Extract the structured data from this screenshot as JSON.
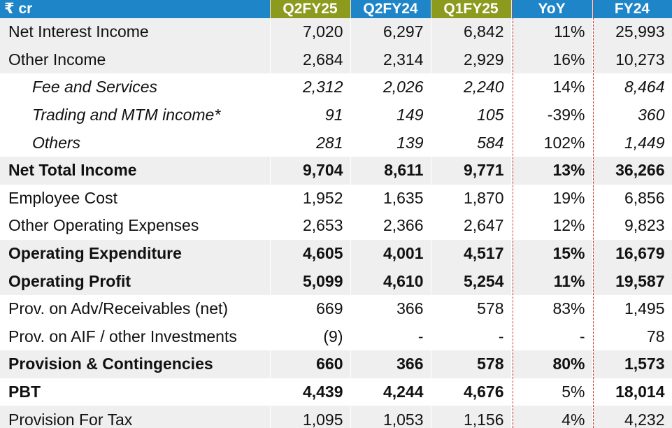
{
  "table": {
    "header": {
      "label": "₹ cr",
      "columns": [
        "Q2FY25",
        "Q2FY24",
        "Q1FY25",
        "YoY",
        "FY24"
      ]
    },
    "rows": [
      {
        "label": "Net Interest Income",
        "values": [
          "7,020",
          "6,297",
          "6,842",
          "11%",
          "25,993"
        ]
      },
      {
        "label": "Other Income",
        "values": [
          "2,684",
          "2,314",
          "2,929",
          "16%",
          "10,273"
        ]
      },
      {
        "label": "Fee and Services",
        "values": [
          "2,312",
          "2,026",
          "2,240",
          "14%",
          "8,464"
        ]
      },
      {
        "label": "Trading and MTM income*",
        "values": [
          "91",
          "149",
          "105",
          "-39%",
          "360"
        ]
      },
      {
        "label": "Others",
        "values": [
          "281",
          "139",
          "584",
          "102%",
          "1,449"
        ]
      },
      {
        "label": "Net Total Income",
        "values": [
          "9,704",
          "8,611",
          "9,771",
          "13%",
          "36,266"
        ]
      },
      {
        "label": "Employee Cost",
        "values": [
          "1,952",
          "1,635",
          "1,870",
          "19%",
          "6,856"
        ]
      },
      {
        "label": "Other Operating Expenses",
        "values": [
          "2,653",
          "2,366",
          "2,647",
          "12%",
          "9,823"
        ]
      },
      {
        "label": "Operating Expenditure",
        "values": [
          "4,605",
          "4,001",
          "4,517",
          "15%",
          "16,679"
        ]
      },
      {
        "label": "Operating Profit",
        "values": [
          "5,099",
          "4,610",
          "5,254",
          "11%",
          "19,587"
        ]
      },
      {
        "label": "Prov. on Adv/Receivables (net)",
        "values": [
          "669",
          "366",
          "578",
          "83%",
          "1,495"
        ]
      },
      {
        "label": "Prov. on AIF / other Investments",
        "values": [
          "(9)",
          "-",
          "-",
          "-",
          "78"
        ]
      },
      {
        "label": "Provision & Contingencies",
        "values": [
          "660",
          "366",
          "578",
          "80%",
          "1,573"
        ]
      },
      {
        "label": "PBT",
        "values": [
          "4,439",
          "4,244",
          "4,676",
          "5%",
          "18,014"
        ]
      },
      {
        "label": "Provision For Tax",
        "values": [
          "1,095",
          "1,053",
          "1,156",
          "4%",
          "4,232"
        ]
      }
    ]
  },
  "colors": {
    "header_blue": "#1e86c8",
    "header_olive": "#8c9a1e",
    "row_shade": "#efefef",
    "divider_red": "#d0342c"
  }
}
